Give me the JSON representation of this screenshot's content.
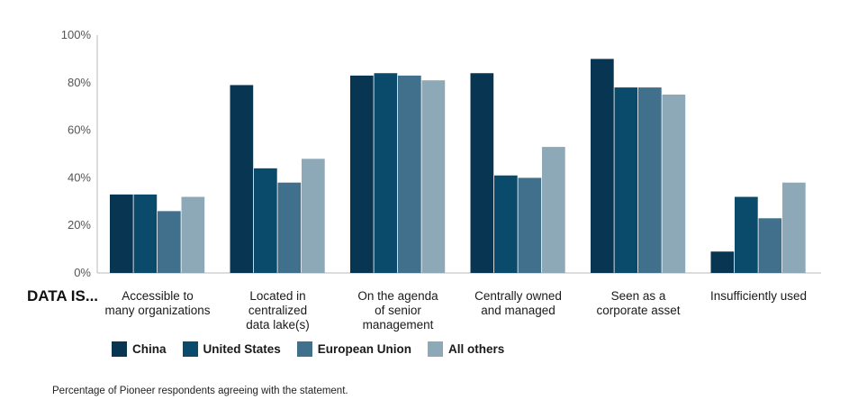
{
  "chart_data": {
    "type": "bar",
    "row_prefix": "DATA IS...",
    "categories": [
      [
        "Accessible to",
        "many organizations"
      ],
      [
        "Located in",
        "centralized",
        "data lake(s)"
      ],
      [
        "On the agenda",
        "of senior",
        "management"
      ],
      [
        "Centrally owned",
        "and managed"
      ],
      [
        "Seen as a",
        "corporate asset"
      ],
      [
        "Insufficiently used"
      ]
    ],
    "series": [
      {
        "name": "China",
        "color": "#083652",
        "values": [
          33,
          79,
          83,
          84,
          90,
          9
        ]
      },
      {
        "name": "United States",
        "color": "#0a4a6a",
        "values": [
          33,
          44,
          84,
          41,
          78,
          32
        ]
      },
      {
        "name": "European Union",
        "color": "#41708c",
        "values": [
          26,
          38,
          83,
          40,
          78,
          23
        ]
      },
      {
        "name": "All others",
        "color": "#8da9b8",
        "values": [
          32,
          48,
          81,
          53,
          75,
          38
        ]
      }
    ],
    "ylim": [
      0,
      100
    ],
    "yticks": [
      "0%",
      "20%",
      "40%",
      "60%",
      "80%",
      "100%"
    ],
    "grid": false,
    "legend_position": "bottom-left"
  },
  "footnote": "Percentage of Pioneer respondents agreeing with the statement."
}
